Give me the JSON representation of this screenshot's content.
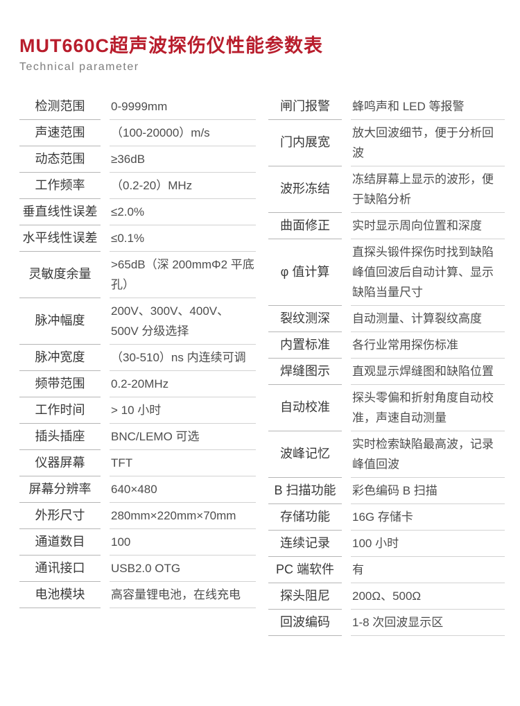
{
  "header": {
    "title": "MUT660C超声波探伤仪性能参数表",
    "subtitle": "Technical parameter",
    "accent_color": "#b81d2c"
  },
  "left_table": {
    "rows": [
      {
        "label": "检测范围",
        "value": "0-9999mm"
      },
      {
        "label": "声速范围",
        "value": "（100-20000）m/s"
      },
      {
        "label": "动态范围",
        "value": "≥36dB"
      },
      {
        "label": "工作频率",
        "value": "（0.2-20）MHz"
      },
      {
        "label": "垂直线性误差",
        "value": "≤2.0%"
      },
      {
        "label": "水平线性误差",
        "value": "≤0.1%"
      },
      {
        "label": "灵敏度余量",
        "value": ">65dB（深 200mmΦ2 平底孔）"
      },
      {
        "label": "脉冲幅度",
        "value": "200V、300V、400V、500V 分级选择"
      },
      {
        "label": "脉冲宽度",
        "value": "（30-510）ns 内连续可调"
      },
      {
        "label": "频带范围",
        "value": "0.2-20MHz"
      },
      {
        "label": "工作时间",
        "value": "> 10 小时"
      },
      {
        "label": "插头插座",
        "value": "BNC/LEMO 可选"
      },
      {
        "label": "仪器屏幕",
        "value": "TFT"
      },
      {
        "label": "屏幕分辨率",
        "value": "640×480"
      },
      {
        "label": "外形尺寸",
        "value": "280mm×220mm×70mm"
      },
      {
        "label": "通道数目",
        "value": "100"
      },
      {
        "label": "通讯接口",
        "value": "USB2.0 OTG"
      },
      {
        "label": "电池模块",
        "value": "高容量锂电池，在线充电"
      }
    ]
  },
  "right_table": {
    "rows": [
      {
        "label": "闸门报警",
        "value": "蜂鸣声和 LED 等报警"
      },
      {
        "label": "门内展宽",
        "value": "放大回波细节，便于分析回波"
      },
      {
        "label": "波形冻结",
        "value": "冻结屏幕上显示的波形，便于缺陷分析"
      },
      {
        "label": "曲面修正",
        "value": "实时显示周向位置和深度"
      },
      {
        "label": "φ 值计算",
        "value": "直探头锻件探伤时找到缺陷峰值回波后自动计算、显示缺陷当量尺寸"
      },
      {
        "label": "裂纹测深",
        "value": "自动测量、计算裂纹高度"
      },
      {
        "label": "内置标准",
        "value": "各行业常用探伤标准"
      },
      {
        "label": "焊缝图示",
        "value": "直观显示焊缝图和缺陷位置"
      },
      {
        "label": "自动校准",
        "value": "探头零偏和折射角度自动校准，声速自动测量"
      },
      {
        "label": "波峰记忆",
        "value": "实时检索缺陷最高波，记录峰值回波"
      },
      {
        "label": "B 扫描功能",
        "value": "彩色编码 B 扫描"
      },
      {
        "label": "存储功能",
        "value": "16G 存储卡"
      },
      {
        "label": "连续记录",
        "value": "100 小时"
      },
      {
        "label": "PC 端软件",
        "value": "有"
      },
      {
        "label": "探头阻尼",
        "value": "200Ω、500Ω"
      },
      {
        "label": "回波编码",
        "value": "1-8 次回波显示区"
      }
    ]
  }
}
